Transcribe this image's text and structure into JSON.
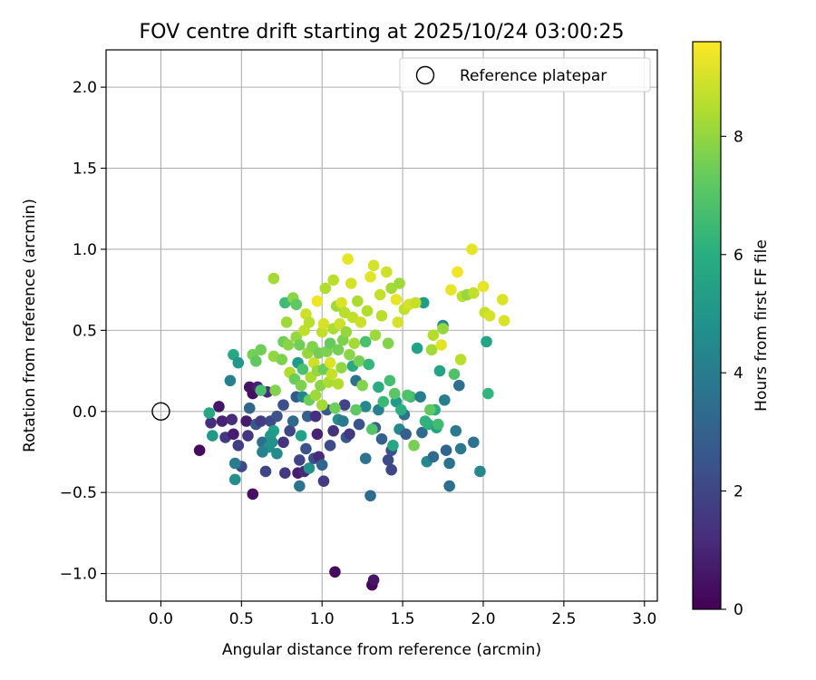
{
  "chart_data": {
    "type": "scatter",
    "title": "FOV centre drift starting at 2025/10/24 03:00:25",
    "xlabel": "Angular distance from reference (arcmin)",
    "ylabel": "Rotation from reference (arcmin)",
    "xlim": [
      -0.34,
      3.08
    ],
    "ylim": [
      -1.17,
      2.23
    ],
    "xticks": [
      0.0,
      0.5,
      1.0,
      1.5,
      2.0,
      2.5,
      3.0
    ],
    "xtick_labels": [
      "0.0",
      "0.5",
      "1.0",
      "1.5",
      "2.0",
      "2.5",
      "3.0"
    ],
    "yticks": [
      -1.0,
      -0.5,
      0.0,
      0.5,
      1.0,
      1.5,
      2.0
    ],
    "ytick_labels": [
      "−1.0",
      "−0.5",
      "0.0",
      "0.5",
      "1.0",
      "1.5",
      "2.0"
    ],
    "grid": true,
    "legend": {
      "placement": "top-right",
      "entries": [
        "Reference platepar"
      ]
    },
    "reference_point": {
      "x": 0.0,
      "y": 0.0,
      "marker": "open-circle",
      "color": "#000000"
    },
    "colorbar": {
      "label": "Hours from first FF file",
      "colormap": "viridis",
      "range": [
        0,
        9.6
      ],
      "ticks": [
        0,
        2,
        4,
        6,
        8
      ],
      "tick_labels": [
        "0",
        "2",
        "4",
        "6",
        "8"
      ]
    },
    "points": [
      {
        "x": 0.24,
        "y": -0.24,
        "h": 0.3
      },
      {
        "x": 0.36,
        "y": 0.03,
        "h": 0.6
      },
      {
        "x": 0.38,
        "y": -0.06,
        "h": 0.9
      },
      {
        "x": 0.31,
        "y": -0.07,
        "h": 1.3
      },
      {
        "x": 0.4,
        "y": -0.16,
        "h": 1.6
      },
      {
        "x": 0.44,
        "y": -0.05,
        "h": 1.2
      },
      {
        "x": 0.45,
        "y": -0.14,
        "h": 0.8
      },
      {
        "x": 0.48,
        "y": -0.21,
        "h": 1.8
      },
      {
        "x": 0.5,
        "y": -0.34,
        "h": 2.2
      },
      {
        "x": 0.53,
        "y": -0.06,
        "h": 0.7
      },
      {
        "x": 0.55,
        "y": 0.15,
        "h": 0.5
      },
      {
        "x": 0.57,
        "y": 0.11,
        "h": 0.4
      },
      {
        "x": 0.57,
        "y": -0.51,
        "h": 0.4
      },
      {
        "x": 0.54,
        "y": -0.15,
        "h": 1.5
      },
      {
        "x": 0.59,
        "y": -0.08,
        "h": 2.6
      },
      {
        "x": 0.6,
        "y": 0.15,
        "h": 0.9
      },
      {
        "x": 0.62,
        "y": -0.06,
        "h": 1.7
      },
      {
        "x": 0.63,
        "y": -0.19,
        "h": 3.5
      },
      {
        "x": 0.66,
        "y": 0.12,
        "h": 1.2
      },
      {
        "x": 0.68,
        "y": -0.06,
        "h": 2.1
      },
      {
        "x": 0.65,
        "y": -0.37,
        "h": 2.0
      },
      {
        "x": 0.55,
        "y": 0.02,
        "h": 3.1
      },
      {
        "x": 0.67,
        "y": -0.22,
        "h": 4.8
      },
      {
        "x": 0.7,
        "y": -0.12,
        "h": 5.4
      },
      {
        "x": 0.72,
        "y": -0.26,
        "h": 4.6
      },
      {
        "x": 0.72,
        "y": -0.03,
        "h": 2.4
      },
      {
        "x": 0.76,
        "y": 0.04,
        "h": 2.3
      },
      {
        "x": 0.76,
        "y": -0.19,
        "h": 1.4
      },
      {
        "x": 0.77,
        "y": -0.38,
        "h": 1.6
      },
      {
        "x": 0.8,
        "y": -0.12,
        "h": 2.0
      },
      {
        "x": 0.82,
        "y": -0.06,
        "h": 3.2
      },
      {
        "x": 0.84,
        "y": 0.09,
        "h": 2.7
      },
      {
        "x": 0.85,
        "y": -0.38,
        "h": 0.8
      },
      {
        "x": 0.86,
        "y": -0.3,
        "h": 1.9
      },
      {
        "x": 0.86,
        "y": -0.46,
        "h": 3.7
      },
      {
        "x": 0.87,
        "y": -0.15,
        "h": 5.5
      },
      {
        "x": 0.88,
        "y": 0.09,
        "h": 4.4
      },
      {
        "x": 0.89,
        "y": -0.37,
        "h": 1.1
      },
      {
        "x": 0.9,
        "y": -0.23,
        "h": 2.5
      },
      {
        "x": 0.91,
        "y": -0.03,
        "h": 2.9
      },
      {
        "x": 0.92,
        "y": -0.35,
        "h": 4.9
      },
      {
        "x": 0.95,
        "y": -0.29,
        "h": 2.3
      },
      {
        "x": 0.96,
        "y": -0.03,
        "h": 1.3
      },
      {
        "x": 0.97,
        "y": -0.14,
        "h": 0.9
      },
      {
        "x": 0.98,
        "y": -0.28,
        "h": 1.2
      },
      {
        "x": 1.0,
        "y": -0.33,
        "h": 3.1
      },
      {
        "x": 1.01,
        "y": -0.43,
        "h": 1.7
      },
      {
        "x": 1.03,
        "y": 0.01,
        "h": 2.6
      },
      {
        "x": 1.05,
        "y": -0.21,
        "h": 2.2
      },
      {
        "x": 1.07,
        "y": -0.12,
        "h": 1.4
      },
      {
        "x": 1.08,
        "y": -0.99,
        "h": 0.3
      },
      {
        "x": 1.1,
        "y": -0.05,
        "h": 4.7
      },
      {
        "x": 1.13,
        "y": -0.06,
        "h": 3.9
      },
      {
        "x": 1.14,
        "y": 0.04,
        "h": 1.9
      },
      {
        "x": 1.15,
        "y": -0.16,
        "h": 2.7
      },
      {
        "x": 1.17,
        "y": -0.14,
        "h": 1.6
      },
      {
        "x": 1.19,
        "y": 0.28,
        "h": 5.8
      },
      {
        "x": 1.21,
        "y": 0.19,
        "h": 3.5
      },
      {
        "x": 1.23,
        "y": -0.08,
        "h": 2.5
      },
      {
        "x": 1.27,
        "y": 0.03,
        "h": 4.5
      },
      {
        "x": 1.27,
        "y": -0.29,
        "h": 3.6
      },
      {
        "x": 1.31,
        "y": -1.07,
        "h": 0.2
      },
      {
        "x": 1.32,
        "y": -1.04,
        "h": 0.5
      },
      {
        "x": 1.3,
        "y": -0.52,
        "h": 3.4
      },
      {
        "x": 1.33,
        "y": -0.1,
        "h": 2.8
      },
      {
        "x": 1.35,
        "y": 0.01,
        "h": 4.2
      },
      {
        "x": 1.37,
        "y": -0.17,
        "h": 3.0
      },
      {
        "x": 1.41,
        "y": -0.3,
        "h": 2.1
      },
      {
        "x": 1.43,
        "y": -0.36,
        "h": 2.0
      },
      {
        "x": 1.43,
        "y": -0.24,
        "h": 2.4
      },
      {
        "x": 1.44,
        "y": -0.21,
        "h": 5.7
      },
      {
        "x": 1.46,
        "y": 0.06,
        "h": 5.2
      },
      {
        "x": 1.48,
        "y": -0.11,
        "h": 4.5
      },
      {
        "x": 1.51,
        "y": -0.02,
        "h": 3.6
      },
      {
        "x": 1.52,
        "y": -0.14,
        "h": 2.9
      },
      {
        "x": 1.55,
        "y": 0.09,
        "h": 6.6
      },
      {
        "x": 1.57,
        "y": -0.21,
        "h": 7.6
      },
      {
        "x": 1.59,
        "y": 0.39,
        "h": 5.5
      },
      {
        "x": 1.61,
        "y": 0.09,
        "h": 4.1
      },
      {
        "x": 1.62,
        "y": -0.13,
        "h": 3.3
      },
      {
        "x": 1.63,
        "y": 0.67,
        "h": 5.3
      },
      {
        "x": 1.65,
        "y": -0.31,
        "h": 4.5
      },
      {
        "x": 1.66,
        "y": -0.08,
        "h": 6.1
      },
      {
        "x": 1.68,
        "y": 0.38,
        "h": 8.3
      },
      {
        "x": 1.69,
        "y": -0.28,
        "h": 3.3
      },
      {
        "x": 1.7,
        "y": 0.01,
        "h": 5.9
      },
      {
        "x": 1.71,
        "y": -0.1,
        "h": 5.6
      },
      {
        "x": 1.73,
        "y": 0.25,
        "h": 5.6
      },
      {
        "x": 1.74,
        "y": 0.41,
        "h": 9.2
      },
      {
        "x": 1.75,
        "y": 0.53,
        "h": 4.6
      },
      {
        "x": 1.76,
        "y": 0.07,
        "h": 4.1
      },
      {
        "x": 1.77,
        "y": -0.24,
        "h": 3.1
      },
      {
        "x": 1.79,
        "y": -0.46,
        "h": 3.4
      },
      {
        "x": 1.79,
        "y": -0.32,
        "h": 3.7
      },
      {
        "x": 1.8,
        "y": 0.75,
        "h": 9.3
      },
      {
        "x": 1.82,
        "y": 0.23,
        "h": 6.9
      },
      {
        "x": 1.83,
        "y": -0.12,
        "h": 3.9
      },
      {
        "x": 1.84,
        "y": 0.86,
        "h": 9.4
      },
      {
        "x": 1.85,
        "y": 0.16,
        "h": 3.5
      },
      {
        "x": 1.86,
        "y": -0.23,
        "h": 3.8
      },
      {
        "x": 1.86,
        "y": 0.32,
        "h": 8.6
      },
      {
        "x": 1.87,
        "y": 0.71,
        "h": 8.6
      },
      {
        "x": 1.9,
        "y": 0.72,
        "h": 8.1
      },
      {
        "x": 1.93,
        "y": 1.0,
        "h": 9.2
      },
      {
        "x": 1.94,
        "y": -0.19,
        "h": 3.6
      },
      {
        "x": 1.94,
        "y": 0.73,
        "h": 8.7
      },
      {
        "x": 1.98,
        "y": -0.37,
        "h": 4.5
      },
      {
        "x": 2.0,
        "y": 0.77,
        "h": 9.3
      },
      {
        "x": 2.01,
        "y": 0.61,
        "h": 8.8
      },
      {
        "x": 2.02,
        "y": 0.43,
        "h": 5.6
      },
      {
        "x": 2.03,
        "y": 0.11,
        "h": 6.3
      },
      {
        "x": 2.04,
        "y": 0.59,
        "h": 9.0
      },
      {
        "x": 2.12,
        "y": 0.69,
        "h": 9.1
      },
      {
        "x": 2.13,
        "y": 0.56,
        "h": 9.1
      },
      {
        "x": 0.3,
        "y": -0.01,
        "h": 5.7
      },
      {
        "x": 0.32,
        "y": -0.15,
        "h": 5.1
      },
      {
        "x": 0.43,
        "y": 0.19,
        "h": 4.2
      },
      {
        "x": 0.45,
        "y": 0.35,
        "h": 5.7
      },
      {
        "x": 0.46,
        "y": -0.32,
        "h": 4.1
      },
      {
        "x": 0.46,
        "y": -0.42,
        "h": 4.8
      },
      {
        "x": 0.48,
        "y": 0.3,
        "h": 5.1
      },
      {
        "x": 0.57,
        "y": 0.35,
        "h": 7.6
      },
      {
        "x": 0.59,
        "y": 0.31,
        "h": 7.2
      },
      {
        "x": 0.62,
        "y": 0.38,
        "h": 7.5
      },
      {
        "x": 0.62,
        "y": 0.13,
        "h": 6.8
      },
      {
        "x": 0.63,
        "y": -0.25,
        "h": 4.3
      },
      {
        "x": 0.68,
        "y": -0.15,
        "h": 5.1
      },
      {
        "x": 0.69,
        "y": -0.19,
        "h": 4.9
      },
      {
        "x": 0.7,
        "y": 0.82,
        "h": 8.3
      },
      {
        "x": 0.7,
        "y": 0.34,
        "h": 8.0
      },
      {
        "x": 0.71,
        "y": 0.13,
        "h": 7.8
      },
      {
        "x": 0.75,
        "y": 0.32,
        "h": 7.7
      },
      {
        "x": 0.76,
        "y": 0.43,
        "h": 7.5
      },
      {
        "x": 0.77,
        "y": 0.67,
        "h": 6.6
      },
      {
        "x": 0.78,
        "y": 0.55,
        "h": 8.2
      },
      {
        "x": 0.79,
        "y": 0.41,
        "h": 7.9
      },
      {
        "x": 0.8,
        "y": 0.24,
        "h": 8.5
      },
      {
        "x": 0.82,
        "y": 0.7,
        "h": 7.9
      },
      {
        "x": 0.83,
        "y": 0.2,
        "h": 7.4
      },
      {
        "x": 0.84,
        "y": 0.66,
        "h": 7.2
      },
      {
        "x": 0.84,
        "y": 0.46,
        "h": 8.1
      },
      {
        "x": 0.85,
        "y": 0.3,
        "h": 5.2
      },
      {
        "x": 0.86,
        "y": 0.41,
        "h": 7.5
      },
      {
        "x": 0.87,
        "y": 0.16,
        "h": 7.7
      },
      {
        "x": 0.88,
        "y": 0.26,
        "h": 6.8
      },
      {
        "x": 0.89,
        "y": 0.5,
        "h": 8.7
      },
      {
        "x": 0.9,
        "y": 0.6,
        "h": 8.9
      },
      {
        "x": 0.91,
        "y": 0.36,
        "h": 8.1
      },
      {
        "x": 0.92,
        "y": 0.55,
        "h": 8.6
      },
      {
        "x": 0.92,
        "y": 0.07,
        "h": 7.4
      },
      {
        "x": 0.93,
        "y": 0.21,
        "h": 8.4
      },
      {
        "x": 0.94,
        "y": 0.4,
        "h": 7.8
      },
      {
        "x": 0.95,
        "y": 0.3,
        "h": 8.9
      },
      {
        "x": 0.96,
        "y": 0.1,
        "h": 8.2
      },
      {
        "x": 0.97,
        "y": 0.68,
        "h": 9.4
      },
      {
        "x": 0.97,
        "y": 0.25,
        "h": 8.1
      },
      {
        "x": 0.98,
        "y": 0.36,
        "h": 7.6
      },
      {
        "x": 0.99,
        "y": 0.16,
        "h": 7.9
      },
      {
        "x": 1.0,
        "y": 0.49,
        "h": 8.7
      },
      {
        "x": 1.0,
        "y": 0.04,
        "h": 8.3
      },
      {
        "x": 1.01,
        "y": 0.26,
        "h": 7.4
      },
      {
        "x": 1.01,
        "y": 0.54,
        "h": 9.0
      },
      {
        "x": 1.02,
        "y": 0.76,
        "h": 8.5
      },
      {
        "x": 1.03,
        "y": 0.37,
        "h": 7.7
      },
      {
        "x": 1.04,
        "y": 0.18,
        "h": 8.4
      },
      {
        "x": 1.05,
        "y": 0.42,
        "h": 7.3
      },
      {
        "x": 1.05,
        "y": 0.3,
        "h": 9.1
      },
      {
        "x": 1.06,
        "y": 0.23,
        "h": 8.8
      },
      {
        "x": 1.07,
        "y": 0.81,
        "h": 8.6
      },
      {
        "x": 1.07,
        "y": 0.51,
        "h": 8.4
      },
      {
        "x": 1.08,
        "y": 0.02,
        "h": 7.5
      },
      {
        "x": 1.09,
        "y": 0.65,
        "h": 8.2
      },
      {
        "x": 1.1,
        "y": 0.38,
        "h": 7.6
      },
      {
        "x": 1.1,
        "y": 0.17,
        "h": 8.5
      },
      {
        "x": 1.11,
        "y": 0.54,
        "h": 8.9
      },
      {
        "x": 1.12,
        "y": 0.67,
        "h": 9.1
      },
      {
        "x": 1.12,
        "y": 0.27,
        "h": 8.0
      },
      {
        "x": 1.13,
        "y": 0.44,
        "h": 7.7
      },
      {
        "x": 1.14,
        "y": 0.61,
        "h": 8.6
      },
      {
        "x": 1.15,
        "y": 0.49,
        "h": 8.1
      },
      {
        "x": 1.16,
        "y": 0.94,
        "h": 9.3
      },
      {
        "x": 1.17,
        "y": 0.35,
        "h": 7.9
      },
      {
        "x": 1.18,
        "y": 0.79,
        "h": 9.0
      },
      {
        "x": 1.19,
        "y": 0.58,
        "h": 8.7
      },
      {
        "x": 1.2,
        "y": 0.42,
        "h": 8.3
      },
      {
        "x": 1.21,
        "y": 0.01,
        "h": 7.2
      },
      {
        "x": 1.22,
        "y": 0.68,
        "h": 8.4
      },
      {
        "x": 1.23,
        "y": 0.31,
        "h": 7.6
      },
      {
        "x": 1.24,
        "y": 0.55,
        "h": 8.9
      },
      {
        "x": 1.25,
        "y": 0.16,
        "h": 7.8
      },
      {
        "x": 1.27,
        "y": 0.43,
        "h": 6.8
      },
      {
        "x": 1.28,
        "y": 0.62,
        "h": 8.5
      },
      {
        "x": 1.29,
        "y": 0.29,
        "h": 6.4
      },
      {
        "x": 1.3,
        "y": 0.83,
        "h": 9.2
      },
      {
        "x": 1.31,
        "y": -0.11,
        "h": 7.0
      },
      {
        "x": 1.32,
        "y": 0.9,
        "h": 9.0
      },
      {
        "x": 1.33,
        "y": 0.47,
        "h": 8.2
      },
      {
        "x": 1.35,
        "y": 0.15,
        "h": 5.9
      },
      {
        "x": 1.36,
        "y": 0.72,
        "h": 8.8
      },
      {
        "x": 1.37,
        "y": 0.59,
        "h": 8.6
      },
      {
        "x": 1.38,
        "y": 0.06,
        "h": 6.5
      },
      {
        "x": 1.4,
        "y": 0.86,
        "h": 8.9
      },
      {
        "x": 1.41,
        "y": 0.42,
        "h": 7.8
      },
      {
        "x": 1.42,
        "y": 0.19,
        "h": 6.7
      },
      {
        "x": 1.43,
        "y": 0.76,
        "h": 8.3
      },
      {
        "x": 1.45,
        "y": 0.11,
        "h": 7.1
      },
      {
        "x": 1.46,
        "y": 0.69,
        "h": 9.3
      },
      {
        "x": 1.47,
        "y": 0.55,
        "h": 9.0
      },
      {
        "x": 1.48,
        "y": 0.79,
        "h": 8.2
      },
      {
        "x": 1.49,
        "y": 0.01,
        "h": 6.0
      },
      {
        "x": 1.51,
        "y": 0.63,
        "h": 8.7
      },
      {
        "x": 1.53,
        "y": 0.1,
        "h": 6.9
      },
      {
        "x": 1.54,
        "y": 0.66,
        "h": 9.0
      },
      {
        "x": 1.58,
        "y": 0.67,
        "h": 8.8
      },
      {
        "x": 1.64,
        "y": -0.06,
        "h": 6.2
      },
      {
        "x": 1.67,
        "y": 0.01,
        "h": 7.2
      },
      {
        "x": 1.69,
        "y": 0.47,
        "h": 8.5
      },
      {
        "x": 1.72,
        "y": -0.08,
        "h": 6.6
      },
      {
        "x": 1.75,
        "y": 0.51,
        "h": 8.1
      }
    ]
  }
}
